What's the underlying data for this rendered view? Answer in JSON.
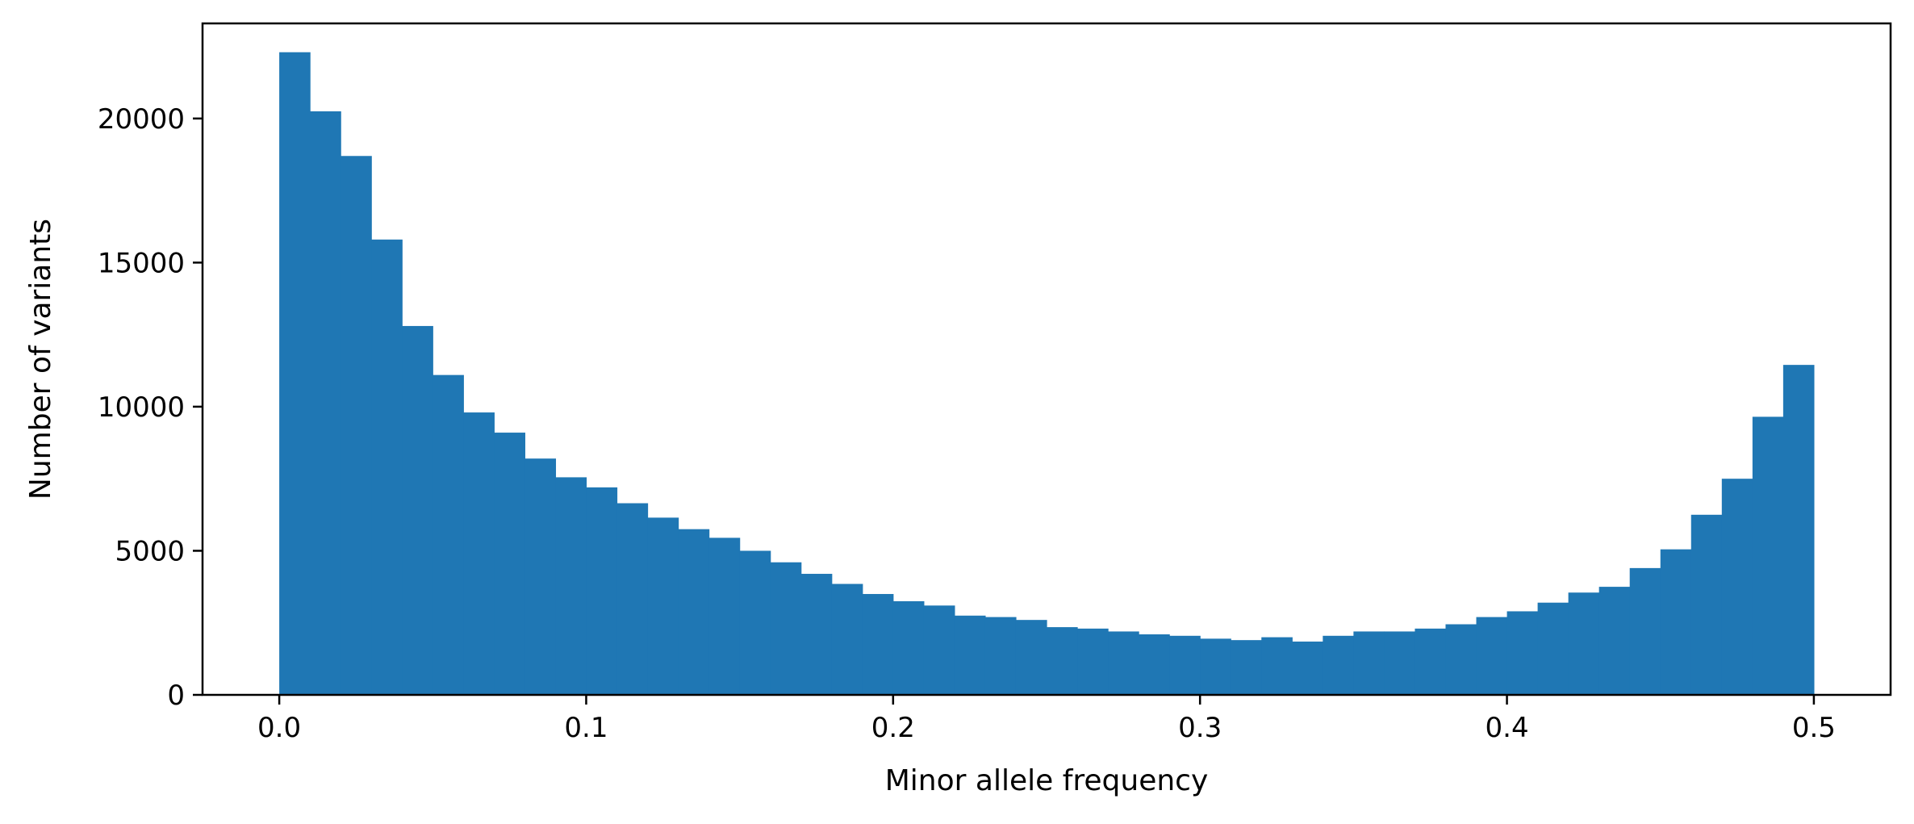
{
  "chart_data": {
    "type": "bar",
    "subtype": "histogram",
    "title": "",
    "xlabel": "Minor allele frequency",
    "ylabel": "Number of variants",
    "xlim": [
      -0.025,
      0.525
    ],
    "ylim": [
      0,
      23300
    ],
    "bin_start": 0.0,
    "bin_width": 0.01,
    "bins": 50,
    "values": [
      22300,
      20250,
      18700,
      15800,
      12800,
      11100,
      9800,
      9100,
      8200,
      7550,
      7200,
      6650,
      6150,
      5750,
      5450,
      5000,
      4600,
      4200,
      3850,
      3500,
      3250,
      3100,
      2750,
      2700,
      2600,
      2350,
      2300,
      2200,
      2100,
      2050,
      1950,
      1900,
      2000,
      1850,
      2050,
      2200,
      2200,
      2300,
      2450,
      2700,
      2900,
      3200,
      3550,
      3750,
      4400,
      5050,
      6250,
      7500,
      9650,
      11450
    ],
    "x_ticks": [
      {
        "value": 0.0,
        "label": "0.0"
      },
      {
        "value": 0.1,
        "label": "0.1"
      },
      {
        "value": 0.2,
        "label": "0.2"
      },
      {
        "value": 0.3,
        "label": "0.3"
      },
      {
        "value": 0.4,
        "label": "0.4"
      },
      {
        "value": 0.5,
        "label": "0.5"
      }
    ],
    "y_ticks": [
      {
        "value": 0,
        "label": "0"
      },
      {
        "value": 5000,
        "label": "5000"
      },
      {
        "value": 10000,
        "label": "10000"
      },
      {
        "value": 15000,
        "label": "15000"
      },
      {
        "value": 20000,
        "label": "20000"
      }
    ],
    "grid": false,
    "legend": "none",
    "colors": {
      "bar": "#1f77b4",
      "axes": "#000000"
    }
  }
}
